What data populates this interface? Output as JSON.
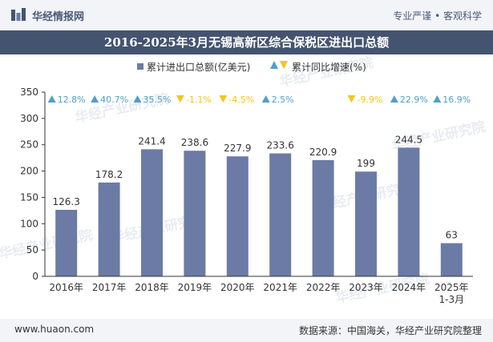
{
  "header": {
    "brand": "华经情报网",
    "tagline": "专业严谨 • 客观科学",
    "title": "2016-2025年3月无锡高新区综合保税区进出口总额"
  },
  "legend": {
    "bar_label": "累计进出口总额(亿美元)",
    "growth_label": "累计同比增速(%)"
  },
  "watermark": "华经产业研究院",
  "footer": {
    "site": "www.huaon.com",
    "source": "数据来源：中国海关，华经产业研究院整理"
  },
  "colors": {
    "bar": "#6b7ba5",
    "up": "#4f9fcf",
    "down": "#f5c518",
    "header_bg": "#44536f"
  },
  "chart_data": {
    "type": "bar",
    "title": "2016-2025年3月无锡高新区综合保税区进出口总额",
    "categories": [
      "2016年",
      "2017年",
      "2018年",
      "2019年",
      "2020年",
      "2021年",
      "2022年",
      "2023年",
      "2024年",
      "2025年\n1-3月"
    ],
    "series": [
      {
        "name": "累计进出口总额(亿美元)",
        "values": [
          126.3,
          178.2,
          241.4,
          238.6,
          227.9,
          233.6,
          220.9,
          199,
          244.5,
          63
        ],
        "labels": [
          "126.3",
          "178.2",
          "241.4",
          "238.6",
          "227.9",
          "233.6",
          "220.9",
          "199",
          "244.5",
          "63"
        ]
      },
      {
        "name": "累计同比增速(%)",
        "values": [
          12.8,
          40.7,
          35.5,
          -1.1,
          -4.5,
          2.5,
          null,
          -9.9,
          22.9,
          16.9
        ],
        "labels": [
          "12.8%",
          "40.7%",
          "35.5%",
          "-1.1%",
          "-4.5%",
          "2.5%",
          "",
          "-9.9%",
          "22.9%",
          "16.9%"
        ]
      }
    ],
    "ylim": [
      0,
      350
    ],
    "yticks": [
      0,
      50,
      100,
      150,
      200,
      250,
      300,
      350
    ],
    "xlabel": "",
    "ylabel": "",
    "grid": false,
    "legend_position": "top-center"
  }
}
